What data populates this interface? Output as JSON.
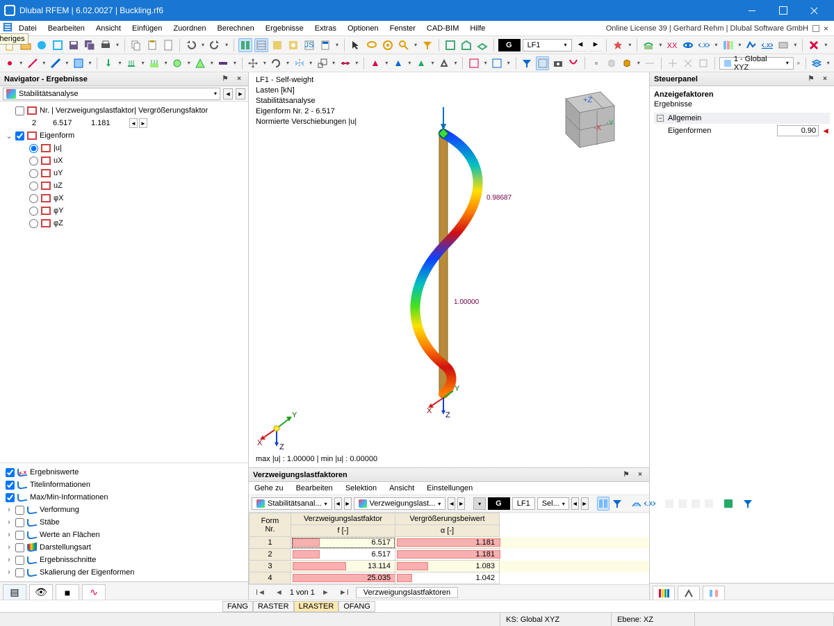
{
  "window": {
    "title": "Dlubal RFEM | 6.02.0027 | Buckling.rf6",
    "license": "Online License 39 | Gerhard Rehm | Dlubal Software GmbH"
  },
  "menu": [
    "Datei",
    "Bearbeiten",
    "Ansicht",
    "Einfügen",
    "Zuordnen",
    "Berechnen",
    "Ergebnisse",
    "Extras",
    "Optionen",
    "Fenster",
    "CAD-BIM",
    "Hilfe"
  ],
  "toolbar1": {
    "lf_badge": "G",
    "lf_combo": "LF1",
    "coord_combo": "1 - Global XYZ"
  },
  "navigator": {
    "title": "Navigator - Ergebnisse",
    "analysis_combo": "Stabilitätsanalyse",
    "tooltip": "Vorheriges",
    "row_header": "Nr. | Verzweigungslastfaktor| Vergrößerungsfaktor",
    "row": {
      "nr": "2",
      "verzw": "6.517",
      "vergr": "1.181"
    },
    "eigenform_label": "Eigenform",
    "components": [
      "|u|",
      "uX",
      "uY",
      "uZ",
      "φX",
      "φY",
      "φZ"
    ],
    "checks": [
      {
        "label": "Ergebniswerte",
        "on": true,
        "icon": "xxx"
      },
      {
        "label": "Titelinformationen",
        "on": true,
        "icon": "curve"
      },
      {
        "label": "Max/Min-Informationen",
        "on": true,
        "icon": "curve"
      },
      {
        "label": "Verformung",
        "on": false,
        "icon": "curve"
      },
      {
        "label": "Stäbe",
        "on": false,
        "icon": "curve"
      },
      {
        "label": "Werte an Flächen",
        "on": false,
        "icon": "curve"
      },
      {
        "label": "Darstellungsart",
        "on": false,
        "icon": "rainbow"
      },
      {
        "label": "Ergebnisschnitte",
        "on": false,
        "icon": "curve"
      },
      {
        "label": "Skalierung der Eigenformen",
        "on": false,
        "icon": "curve"
      }
    ]
  },
  "viewport": {
    "lines": [
      "LF1 - Self-weight",
      "Lasten [kN]",
      "Stabilitätsanalyse",
      "Eigenform Nr. 2 - 6.517",
      "Normierte Verschiebungen |u|"
    ],
    "stat": "max |u| : 1.00000 | min |u| : 0.00000",
    "label1": "0.98687",
    "label2": "1.00000",
    "axis_x": "X",
    "axis_y": "Y",
    "axis_z": "Z",
    "beam_color": "#b88a3a",
    "mode_colors": [
      "#d01010",
      "#ff8000",
      "#ffe000",
      "#40e020",
      "#00c0c0",
      "#1040ff",
      "#ff8000",
      "#d01010"
    ]
  },
  "results": {
    "title": "Verzweigungslastfaktoren",
    "menus": [
      "Gehe zu",
      "Bearbeiten",
      "Selektion",
      "Ansicht",
      "Einstellungen"
    ],
    "toolbar_combo1": "Stabilitätsanal...",
    "toolbar_combo2": "Verzweigungslast...",
    "lf_badge": "G",
    "lf_combo": "LF1",
    "sel": "Sel...",
    "cols": [
      {
        "top": "Form",
        "sub": "Nr."
      },
      {
        "top": "Verzweigungslastfaktor",
        "sub": "f [-]"
      },
      {
        "top": "Vergrößerungsbeiwert",
        "sub": "α [-]"
      }
    ],
    "rows": [
      {
        "nr": "1",
        "f": "6.517",
        "a": "1.181",
        "pf": 26,
        "pa": 100
      },
      {
        "nr": "2",
        "f": "6.517",
        "a": "1.181",
        "pf": 26,
        "pa": 100
      },
      {
        "nr": "3",
        "f": "13.114",
        "a": "1.083",
        "pf": 52,
        "pa": 30
      },
      {
        "nr": "4",
        "f": "25.035",
        "a": "1.042",
        "pf": 100,
        "pa": 15
      }
    ],
    "pager": "1 von 1",
    "tab": "Verzweigungslastfaktoren"
  },
  "steuer": {
    "title": "Steuerpanel",
    "sec1": "Anzeigefaktoren",
    "sec2": "Ergebnisse",
    "group": "Allgemein",
    "key": "Eigenformen",
    "val": "0.90"
  },
  "snap": [
    "FANG",
    "RASTER",
    "LRASTER",
    "OFANG"
  ],
  "snap_on": [
    false,
    false,
    true,
    false
  ],
  "status": {
    "ks": "KS: Global XYZ",
    "ebene": "Ebene: XZ"
  }
}
